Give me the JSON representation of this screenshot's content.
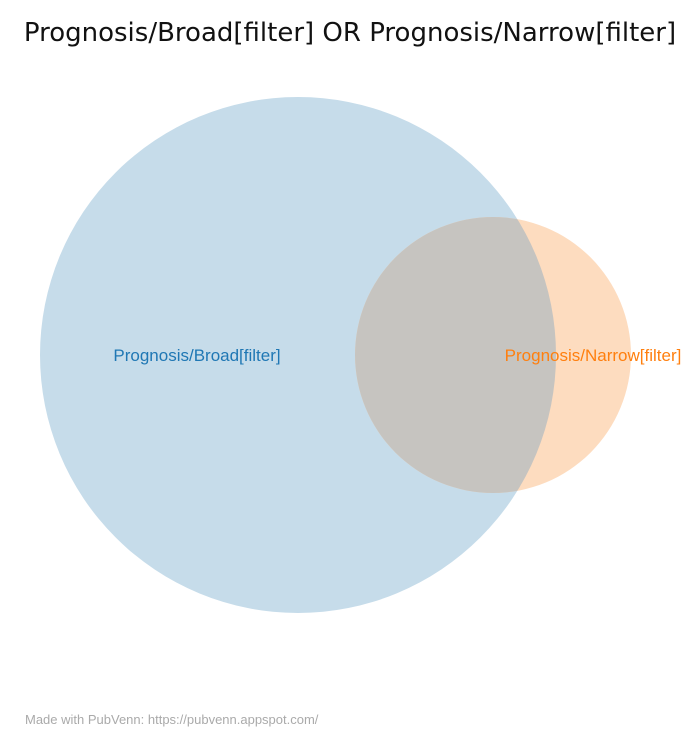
{
  "title": "Prognosis/Broad[filter] OR Prognosis/Narrow[filter]",
  "sets": [
    {
      "name": "Prognosis/Broad[filter]",
      "fill_color": "#c6dcea",
      "label_color": "#1f77b4"
    },
    {
      "name": "Prognosis/Narrow[filter]",
      "fill_color": "#fddcbf",
      "label_color": "#ff7f0e"
    }
  ],
  "intersection_color": "#c6c4c0",
  "footer": "Made with PubVenn: https://pubvenn.appspot.com/"
}
